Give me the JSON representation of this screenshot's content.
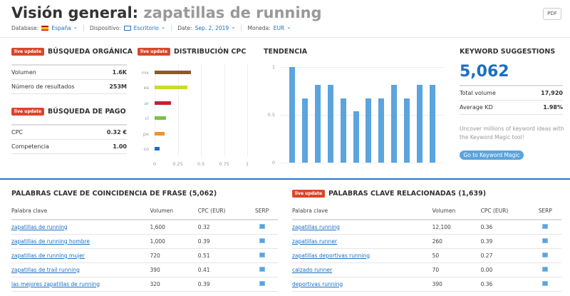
{
  "header": {
    "title": "Visión general:",
    "keyword": "zapatillas de running",
    "pdf": "PDF",
    "filters": [
      {
        "label": "Database:",
        "value": "España",
        "icon": "spain-flag-icon"
      },
      {
        "label": "Dispositivo:",
        "value": "Escritorio",
        "icon": "desktop-icon"
      },
      {
        "label": "Date:",
        "value": "Sep. 2, 2019"
      },
      {
        "label": "Moneda:",
        "value": "EUR"
      }
    ]
  },
  "badge": "live update",
  "organic": {
    "title": "BÚSQUEDA ORGÁNICA",
    "rows": [
      {
        "k": "Volumen",
        "v": "1.6K"
      },
      {
        "k": "Número de resultados",
        "v": "253M"
      }
    ]
  },
  "paid": {
    "title": "BÚSQUEDA DE PAGO",
    "rows": [
      {
        "k": "CPC",
        "v": "0.32 €"
      },
      {
        "k": "Competencia",
        "v": "1.00"
      }
    ]
  },
  "chart_data": [
    {
      "type": "bar",
      "title": "DISTRIBUCIÓN CPC",
      "orientation": "horizontal",
      "categories": [
        "mx",
        "es",
        "ar",
        "cl",
        "pe",
        "co"
      ],
      "values": [
        0.39,
        0.35,
        0.18,
        0.12,
        0.11,
        0.05
      ],
      "colors": [
        "#8b5a2b",
        "#c8dc28",
        "#c8202e",
        "#7cc242",
        "#f0922b",
        "#1a6fc2"
      ],
      "xlim": [
        0,
        1
      ],
      "xticks": [
        "0",
        "0.25",
        "0.5",
        "0.75",
        "1"
      ],
      "grid": true
    },
    {
      "type": "bar",
      "title": "TENDENCIA",
      "values": [
        1,
        0.67,
        0.81,
        0.81,
        0.67,
        0.54,
        0.67,
        0.67,
        0.81,
        0.67,
        0.81,
        0.81
      ],
      "color": "#5ba4dd",
      "ylim": [
        0,
        1
      ],
      "yticks": [
        "0",
        "0.5",
        "1"
      ],
      "grid": true
    }
  ],
  "suggestions": {
    "title": "KEYWORD SUGGESTIONS",
    "count": "5,062",
    "rows": [
      {
        "k": "Total volume",
        "v": "17,920"
      },
      {
        "k": "Average KD",
        "v": "1.98%"
      }
    ],
    "desc": "Uncover millions of keyword ideas with the Keyword Magic tool!",
    "button": "Go to Keyword Magic"
  },
  "phrase": {
    "title": "PALABRAS CLAVE DE COINCIDENCIA DE FRASE (5,062)",
    "columns": [
      "Palabra clave",
      "Volumen",
      "CPC (EUR)",
      "SERP"
    ],
    "rows": [
      [
        "zapatillas de running",
        "1,600",
        "0.32"
      ],
      [
        "zapatillas de running hombre",
        "1,000",
        "0.39"
      ],
      [
        "zapatillas de running mujer",
        "720",
        "0.51"
      ],
      [
        "zapatillas de trail running",
        "390",
        "0.41"
      ],
      [
        "las mejores zapatillas de running",
        "320",
        "0.39"
      ]
    ]
  },
  "related": {
    "title": "PALABRAS CLAVE RELACIONADAS (1,639)",
    "columns": [
      "Palabra clave",
      "Volumen",
      "CPC (EUR)",
      "SERP"
    ],
    "rows": [
      [
        "zapatillas running",
        "12,100",
        "0.36"
      ],
      [
        "zapatillas runner",
        "260",
        "0.39"
      ],
      [
        "zapatillas deportivas running",
        "50",
        "0.27"
      ],
      [
        "calzado runner",
        "70",
        "0.00"
      ],
      [
        "deportivas running",
        "390",
        "0.36"
      ]
    ]
  }
}
